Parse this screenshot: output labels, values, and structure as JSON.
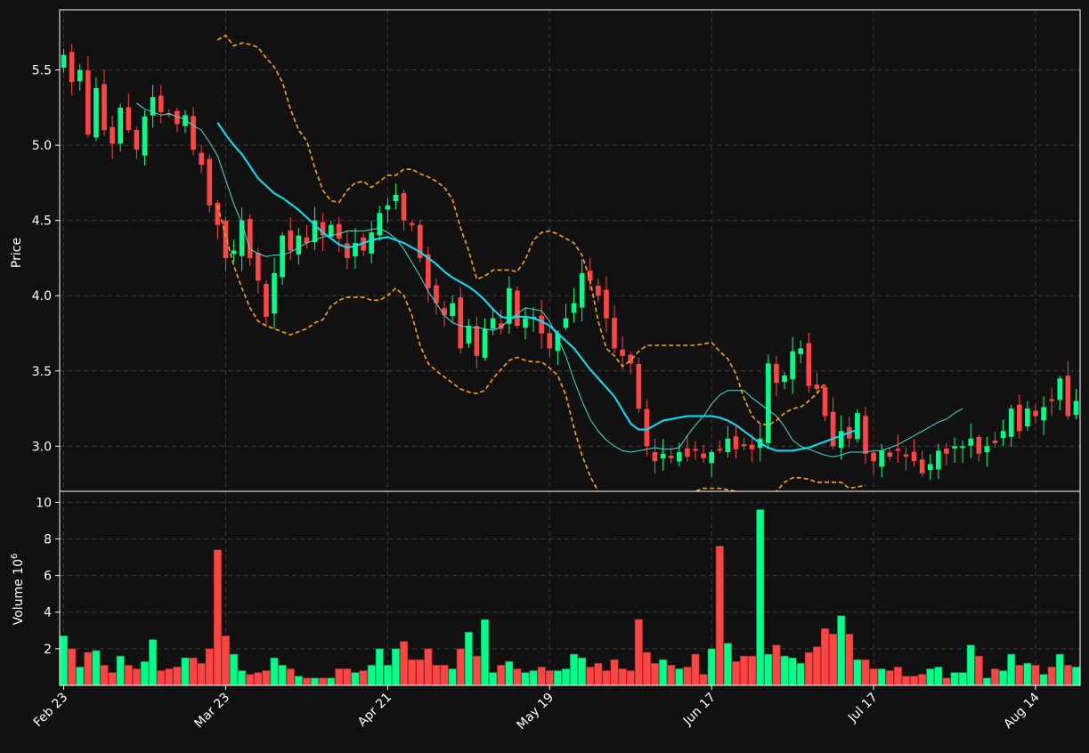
{
  "chart_data": {
    "type": "candlestick",
    "price_panel": {
      "ylabel": "Price",
      "ylim": [
        2.7,
        5.9
      ],
      "yticks": [
        "3.0",
        "3.5",
        "4.0",
        "4.5",
        "5.0",
        "5.5"
      ],
      "grid": true,
      "series": [
        {
          "name": "ohlc",
          "style": "candlestick"
        },
        {
          "style": "line",
          "color": "#40e0d0",
          "window": 10
        },
        {
          "style": "line",
          "color": "#00e5ff",
          "window": 20
        },
        {
          "style": "dashed",
          "color": "#ffa500",
          "band": "upper"
        },
        {
          "style": "dashed",
          "color": "#ffa500",
          "band": "lower"
        }
      ],
      "close": [
        5.6,
        5.42,
        5.5,
        5.07,
        5.38,
        5.1,
        5.01,
        5.25,
        5.1,
        4.97,
        5.19,
        5.32,
        5.22,
        5.2,
        5.14,
        5.2,
        4.97,
        4.87,
        4.6,
        4.47,
        4.25,
        4.3,
        4.5,
        4.25,
        4.1,
        3.86,
        4.15,
        4.4,
        4.3,
        4.4,
        4.35,
        4.5,
        4.4,
        4.47,
        4.38,
        4.25,
        4.35,
        4.3,
        4.42,
        4.55,
        4.6,
        4.67,
        4.5,
        4.47,
        4.25,
        4.05,
        3.95,
        3.87,
        3.95,
        3.65,
        3.8,
        3.6,
        3.78,
        3.85,
        3.78,
        4.05,
        3.8,
        3.85,
        3.86,
        3.75,
        3.65,
        3.75,
        3.85,
        3.95,
        4.15,
        4.1,
        4.0,
        3.85,
        3.65,
        3.6,
        3.55,
        3.25,
        3.0,
        2.9,
        2.95,
        2.92,
        2.96,
        2.93,
        2.97,
        2.92,
        2.96,
        2.97,
        3.05,
        2.98,
        3.0,
        2.98,
        3.05,
        3.55,
        3.42,
        3.47,
        3.63,
        3.65,
        3.4,
        3.38,
        3.2,
        3.0,
        3.1,
        3.05,
        3.22,
        2.95,
        2.9,
        2.97,
        2.93,
        2.97,
        2.93,
        2.9,
        2.82,
        2.88,
        2.97,
        2.95,
        3.0,
        3.0,
        3.05,
        2.95,
        3.0,
        3.02,
        3.1,
        3.25,
        3.1,
        3.25,
        3.2,
        3.26,
        3.3,
        3.45,
        3.2,
        3.3
      ],
      "ma10": [
        null,
        null,
        null,
        null,
        null,
        null,
        null,
        null,
        null,
        5.28,
        5.24,
        5.22,
        5.2,
        5.21,
        5.19,
        5.17,
        5.13,
        5.1,
        5.02,
        4.93,
        4.77,
        4.61,
        4.48,
        4.31,
        4.28,
        4.26,
        4.27,
        4.27,
        4.29,
        4.32,
        4.35,
        4.37,
        4.39,
        4.4,
        4.41,
        4.43,
        4.43,
        4.43,
        4.44,
        4.45,
        4.42,
        4.38,
        4.31,
        4.22,
        4.13,
        4.03,
        3.95,
        3.87,
        3.82,
        3.8,
        3.79,
        3.79,
        3.78,
        3.77,
        3.79,
        3.84,
        3.88,
        3.92,
        3.91,
        3.9,
        3.83,
        3.72,
        3.6,
        3.44,
        3.3,
        3.18,
        3.1,
        3.04,
        3.0,
        2.97,
        2.96,
        2.97,
        2.98,
        2.99,
        2.98,
        2.98,
        2.99,
        3.07,
        3.14,
        3.2,
        3.28,
        3.34,
        3.37,
        3.37,
        3.37,
        3.32,
        3.28,
        3.24,
        3.2,
        3.13,
        3.04,
        3.0,
        2.98,
        2.96,
        2.94,
        2.93,
        2.94,
        2.96,
        2.96,
        2.96,
        2.97,
        2.97,
        2.99,
        3.01,
        3.04,
        3.07,
        3.1,
        3.13,
        3.16,
        3.18,
        3.22,
        3.25
      ],
      "ma20": [
        null,
        null,
        null,
        null,
        null,
        null,
        null,
        null,
        null,
        null,
        null,
        null,
        null,
        null,
        null,
        null,
        null,
        null,
        null,
        5.15,
        5.07,
        5.0,
        4.94,
        4.86,
        4.78,
        4.73,
        4.68,
        4.65,
        4.61,
        4.57,
        4.52,
        4.47,
        4.42,
        4.38,
        4.34,
        4.32,
        4.33,
        4.35,
        4.37,
        4.38,
        4.39,
        4.37,
        4.35,
        4.32,
        4.29,
        4.25,
        4.21,
        4.16,
        4.12,
        4.09,
        4.06,
        4.02,
        3.97,
        3.91,
        3.86,
        3.85,
        3.86,
        3.86,
        3.85,
        3.83,
        3.8,
        3.75,
        3.7,
        3.65,
        3.58,
        3.51,
        3.45,
        3.39,
        3.33,
        3.24,
        3.15,
        3.11,
        3.11,
        3.14,
        3.17,
        3.18,
        3.19,
        3.2,
        3.2,
        3.2,
        3.2,
        3.19,
        3.17,
        3.14,
        3.1,
        3.06,
        3.02,
        2.99,
        2.97,
        2.97,
        2.97,
        2.98,
        2.99,
        3.01,
        3.03,
        3.05,
        3.07,
        3.09,
        3.11
      ],
      "bb_upper": [
        5.7,
        5.73,
        5.66,
        5.68,
        5.67,
        5.65,
        5.58,
        5.52,
        5.42,
        5.24,
        5.1,
        5.03,
        4.85,
        4.7,
        4.63,
        4.62,
        4.7,
        4.75,
        4.76,
        4.72,
        4.76,
        4.8,
        4.8,
        4.84,
        4.84,
        4.81,
        4.79,
        4.76,
        4.72,
        4.64,
        4.45,
        4.3,
        4.11,
        4.13,
        4.17,
        4.17,
        4.17,
        4.16,
        4.24,
        4.37,
        4.42,
        4.43,
        4.41,
        4.38,
        4.35,
        4.27,
        4.1,
        3.83,
        3.65,
        3.6,
        3.53,
        3.57,
        3.63,
        3.67,
        3.67,
        3.67,
        3.67,
        3.67,
        3.67,
        3.67,
        3.68,
        3.69,
        3.63,
        3.58,
        3.48,
        3.32,
        3.2,
        3.15,
        3.14,
        3.17,
        3.22,
        3.25,
        3.26,
        3.3,
        3.35,
        3.42
      ],
      "bb_lower": [
        4.6,
        4.4,
        4.2,
        4.05,
        3.92,
        3.83,
        3.8,
        3.78,
        3.76,
        3.74,
        3.76,
        3.78,
        3.82,
        3.84,
        3.93,
        3.97,
        3.99,
        3.99,
        3.99,
        3.97,
        3.97,
        4.0,
        4.05,
        4.0,
        3.87,
        3.67,
        3.55,
        3.5,
        3.46,
        3.42,
        3.38,
        3.36,
        3.35,
        3.37,
        3.45,
        3.51,
        3.57,
        3.59,
        3.57,
        3.56,
        3.56,
        3.52,
        3.47,
        3.34,
        3.12,
        2.94,
        2.8,
        2.7,
        2.62,
        2.57,
        2.6,
        2.64,
        2.65,
        2.64,
        2.62,
        2.63,
        2.65,
        2.66,
        2.68,
        2.7,
        2.72,
        2.72,
        2.72,
        2.71,
        2.7,
        2.67,
        2.63,
        2.55,
        2.6,
        2.7,
        2.76,
        2.79,
        2.79,
        2.78,
        2.76,
        2.76,
        2.76,
        2.76,
        2.72,
        2.73,
        2.74
      ]
    },
    "volume_panel": {
      "ylabel": "Volume  10",
      "ylabel_exponent": "6",
      "ylim": [
        0,
        10.6
      ],
      "yticks": [
        "2",
        "4",
        "6",
        "8",
        "10"
      ],
      "type": "bar",
      "values": [
        2.7,
        2.0,
        1.0,
        1.8,
        1.9,
        1.1,
        0.7,
        1.6,
        1.1,
        0.9,
        1.3,
        2.5,
        0.8,
        0.9,
        1.0,
        1.5,
        1.5,
        1.2,
        2.0,
        7.4,
        2.7,
        1.7,
        0.8,
        0.6,
        0.7,
        0.8,
        1.5,
        1.1,
        0.9,
        0.5,
        0.4,
        0.4,
        0.4,
        0.4,
        0.9,
        0.9,
        0.7,
        0.8,
        1.1,
        2.0,
        1.1,
        2.0,
        2.4,
        1.4,
        1.4,
        2.0,
        1.1,
        1.1,
        0.9,
        2.0,
        2.9,
        1.6,
        3.6,
        0.7,
        1.1,
        1.3,
        0.9,
        0.7,
        0.8,
        1.0,
        0.8,
        0.8,
        0.9,
        1.7,
        1.5,
        1.0,
        1.2,
        0.8,
        1.4,
        0.9,
        0.8,
        3.6,
        1.8,
        1.2,
        1.4,
        1.1,
        0.9,
        1.0,
        1.7,
        0.6,
        2.0,
        7.6,
        2.3,
        1.3,
        1.6,
        1.6,
        9.6,
        1.7,
        2.2,
        1.6,
        1.5,
        1.2,
        1.8,
        2.1,
        3.1,
        2.8,
        3.8,
        2.8,
        1.4,
        1.4,
        0.9,
        0.9,
        0.8,
        1.0,
        0.5,
        0.5,
        0.6,
        0.9,
        1.0,
        0.4,
        0.7,
        0.7,
        2.2,
        1.6,
        0.4,
        0.9,
        0.8,
        1.7,
        1.1,
        1.2,
        1.1,
        0.6,
        1.0,
        1.7,
        1.1,
        1.0
      ],
      "color_up": "#00ff88",
      "color_down": "#ff4444"
    },
    "x_axis": {
      "ticks": [
        {
          "label": "Feb 23",
          "index": 0
        },
        {
          "label": "Mar 23",
          "index": 20
        },
        {
          "label": "Apr 21",
          "index": 40
        },
        {
          "label": "May 19",
          "index": 60
        },
        {
          "label": "Jun 17",
          "index": 80
        },
        {
          "label": "Jul 17",
          "index": 100
        },
        {
          "label": "Aug 14",
          "index": 120
        }
      ]
    },
    "colors": {
      "background": "#111111",
      "up": "#00ff88",
      "down": "#ff4444",
      "ma10": "#40e0d0",
      "ma20": "#00e5ff",
      "bands": "#ffa500",
      "grid": "#3a3a3a",
      "axis_text": "#ffffff"
    }
  }
}
